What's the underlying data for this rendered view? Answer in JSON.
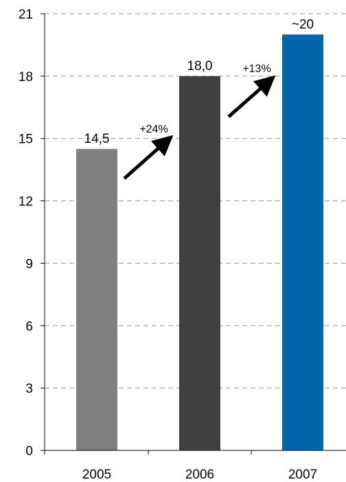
{
  "chart_data": {
    "type": "bar",
    "categories": [
      "2005",
      "2006",
      "2007"
    ],
    "values": [
      14.5,
      18.0,
      20
    ],
    "value_labels": [
      "14,5",
      "18,0",
      "~20"
    ],
    "bar_colors": [
      "#808080",
      "#404040",
      "#0066AA"
    ],
    "title": "",
    "xlabel": "",
    "ylabel": "",
    "ylim": [
      0,
      21
    ],
    "yticks": [
      0,
      3,
      6,
      9,
      12,
      15,
      18,
      21
    ],
    "grid": true,
    "grid_style": "dashed",
    "grid_color": "#999999",
    "legend": "none",
    "annotations": [
      {
        "text": "+24%",
        "from": "2005",
        "to": "2006"
      },
      {
        "text": "+13%",
        "from": "2006",
        "to": "2007"
      }
    ]
  }
}
